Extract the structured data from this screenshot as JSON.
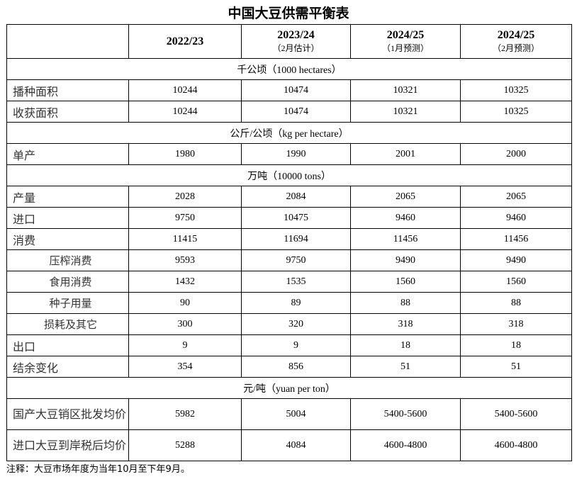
{
  "title": "中国大豆供需平衡表",
  "columns": [
    {
      "year": "2022/23",
      "note": ""
    },
    {
      "year": "2023/24",
      "note": "（2月估计）"
    },
    {
      "year": "2024/25",
      "note": "（1月预测）"
    },
    {
      "year": "2024/25",
      "note": "（2月预测）"
    }
  ],
  "sections": [
    {
      "unit": "千公顷（1000 hectares）",
      "rows": [
        {
          "label": "播种面积",
          "values": [
            "10244",
            "10474",
            "10321",
            "10325"
          ]
        },
        {
          "label": "收获面积",
          "values": [
            "10244",
            "10474",
            "10321",
            "10325"
          ]
        }
      ]
    },
    {
      "unit": "公斤/公顷（kg per hectare）",
      "rows": [
        {
          "label": "单产",
          "values": [
            "1980",
            "1990",
            "2001",
            "2000"
          ]
        }
      ]
    },
    {
      "unit": "万吨（10000 tons）",
      "rows": [
        {
          "label": "产量",
          "values": [
            "2028",
            "2084",
            "2065",
            "2065"
          ]
        },
        {
          "label": "进口",
          "values": [
            "9750",
            "10475",
            "9460",
            "9460"
          ]
        },
        {
          "label": "消费",
          "values": [
            "11415",
            "11694",
            "11456",
            "11456"
          ]
        },
        {
          "label": "压榨消费",
          "values": [
            "9593",
            "9750",
            "9490",
            "9490"
          ],
          "sub": true
        },
        {
          "label": "食用消费",
          "values": [
            "1432",
            "1535",
            "1560",
            "1560"
          ],
          "sub": true
        },
        {
          "label": "种子用量",
          "values": [
            "90",
            "89",
            "88",
            "88"
          ],
          "sub": true
        },
        {
          "label": "损耗及其它",
          "values": [
            "300",
            "320",
            "318",
            "318"
          ],
          "sub": true
        },
        {
          "label": "出口",
          "values": [
            "9",
            "9",
            "18",
            "18"
          ]
        },
        {
          "label": "结余变化",
          "values": [
            "354",
            "856",
            "51",
            "51"
          ]
        }
      ]
    },
    {
      "unit": "元/吨（yuan per ton）",
      "rows": [
        {
          "label": "国产大豆销区批发均价",
          "values": [
            "5982",
            "5004",
            "5400-5600",
            "5400-5600"
          ],
          "tall": true
        },
        {
          "label": "进口大豆到岸税后均价",
          "values": [
            "5288",
            "4084",
            "4600-4800",
            "4600-4800"
          ],
          "tall": true
        }
      ]
    }
  ],
  "footnote": "注释：大豆市场年度为当年10月至下年9月。"
}
